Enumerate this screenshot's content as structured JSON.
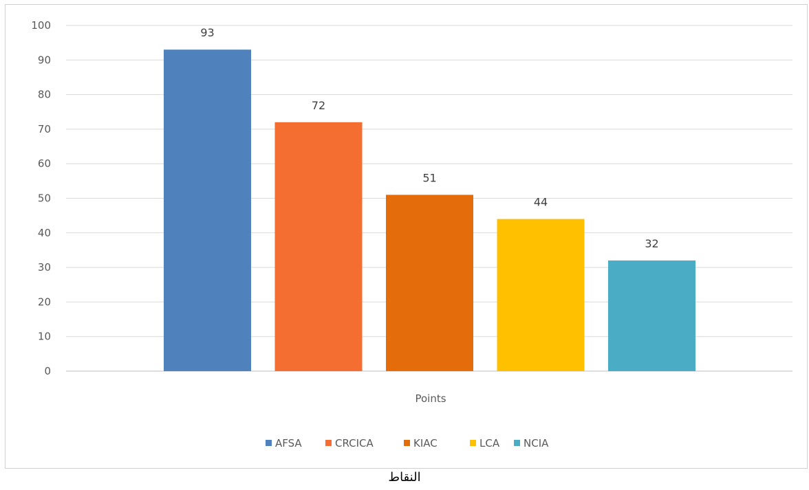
{
  "chart_data": {
    "type": "bar",
    "categories": [
      "Points"
    ],
    "series": [
      {
        "name": "AFSA",
        "values": [
          93
        ],
        "color": "#4F81BD"
      },
      {
        "name": "CRCICA",
        "values": [
          72
        ],
        "color": "#F46E32"
      },
      {
        "name": "KIAC",
        "values": [
          51
        ],
        "color": "#E46C0A"
      },
      {
        "name": "LCA",
        "values": [
          44
        ],
        "color": "#FFC000"
      },
      {
        "name": "NCIA",
        "values": [
          32
        ],
        "color": "#4BACC6"
      }
    ],
    "ylim": [
      0,
      100
    ],
    "yticks": [
      0,
      10,
      20,
      30,
      40,
      50,
      60,
      70,
      80,
      90,
      100
    ],
    "grid": true,
    "legend": "bottom",
    "data_labels": true
  },
  "caption": "النقاط"
}
